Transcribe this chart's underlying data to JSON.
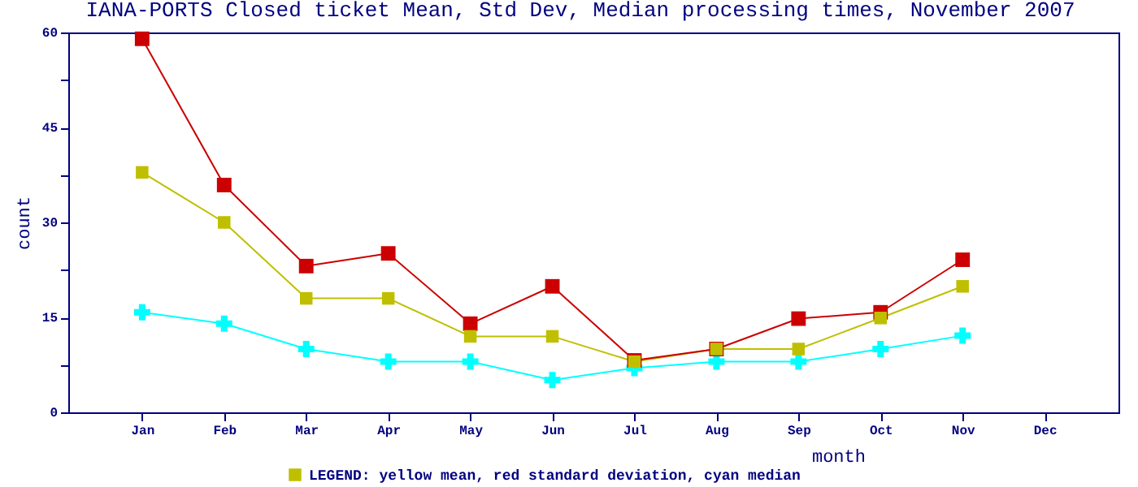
{
  "chart_data": {
    "type": "line",
    "title": "IANA-PORTS Closed ticket Mean, Std Dev, Median processing times, November 2007",
    "xlabel": "month",
    "ylabel": "count",
    "categories": [
      "Jan",
      "Feb",
      "Mar",
      "Apr",
      "May",
      "Jun",
      "Jul",
      "Aug",
      "Sep",
      "Oct",
      "Nov",
      "Dec"
    ],
    "ylim": [
      0,
      60
    ],
    "yticks": [
      0,
      {
        "value": 7.5,
        "label": null
      },
      15,
      {
        "value": 22.5,
        "label": null
      },
      30,
      {
        "value": 37.5,
        "label": null
      },
      45,
      {
        "value": 52.5,
        "label": null
      },
      60
    ],
    "grid": false,
    "legend": "bottom",
    "line_style": "solid",
    "series": [
      {
        "name": "LEGEND: yellow mean, red standard deviation, cyan median",
        "color": "#bfbf00",
        "marker": "square",
        "values": [
          37.9,
          30.0,
          18.0,
          18.0,
          12.0,
          12.0,
          8.0,
          10.0,
          10.0,
          14.9,
          19.9,
          null
        ]
      },
      {
        "color": "#cc0000",
        "marker": "square",
        "values": [
          59.0,
          35.9,
          23.1,
          25.1,
          14.0,
          19.9,
          8.2,
          10.0,
          14.8,
          15.8,
          24.1,
          null
        ]
      },
      {
        "color": "#00ffff",
        "marker": "cross",
        "values": [
          15.8,
          14.0,
          10.0,
          8.0,
          8.0,
          5.1,
          7.0,
          8.0,
          8.0,
          10.0,
          12.1,
          null
        ]
      }
    ]
  }
}
